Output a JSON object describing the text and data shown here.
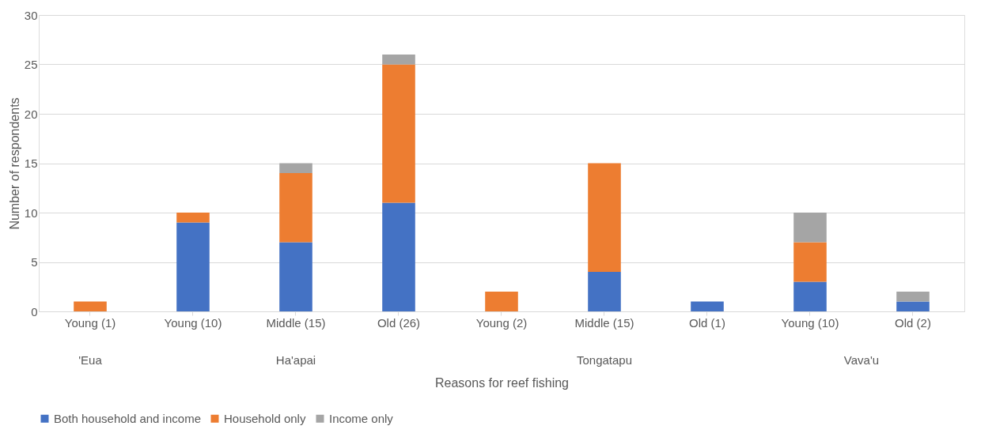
{
  "chart_data": {
    "type": "bar",
    "stacked": true,
    "xlabel": "Reasons for reef fishing",
    "ylabel": "Number of respondents",
    "categories": [
      "Young (1)",
      "Young (10)",
      "Middle (15)",
      "Old (26)",
      "Young (2)",
      "Middle (15)",
      "Old (1)",
      "Young (10)",
      "Old (2)"
    ],
    "series": [
      {
        "name": "Both household and income",
        "color": "#4472c4",
        "values": [
          0,
          9,
          7,
          11,
          0,
          4,
          1,
          3,
          1
        ]
      },
      {
        "name": "Household only",
        "color": "#ed7d31",
        "values": [
          1,
          1,
          7,
          14,
          2,
          11,
          0,
          4,
          0
        ]
      },
      {
        "name": "Income only",
        "color": "#a5a5a5",
        "values": [
          0,
          0,
          1,
          1,
          0,
          0,
          0,
          3,
          1
        ]
      }
    ],
    "annotations": [
      "'Eua",
      "Ha'apai",
      "Tongatapu",
      "Vava'u"
    ],
    "ylim": [
      0,
      30
    ],
    "yticks": [
      0,
      5,
      10,
      15,
      20,
      25,
      30
    ],
    "grid": "y",
    "legend": "bottom"
  }
}
